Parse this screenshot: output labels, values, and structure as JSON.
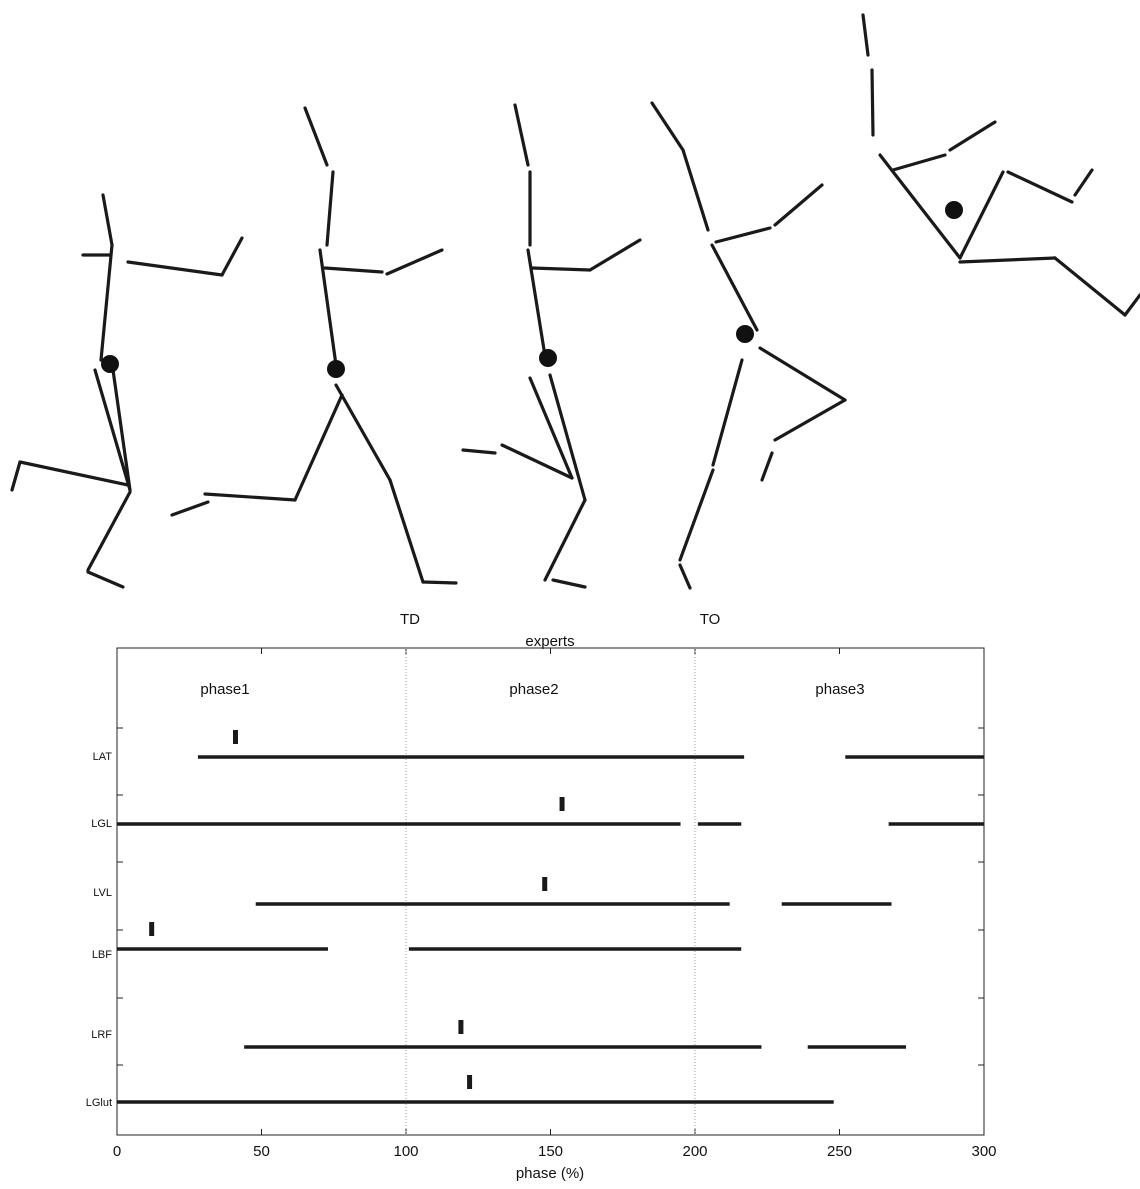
{
  "chart_data": {
    "type": "timeline",
    "title": "experts",
    "annotations": [
      "TD",
      "TO"
    ],
    "phase_labels": [
      "phase1",
      "phase2",
      "phase3"
    ],
    "phase_boundaries": [
      100,
      200
    ],
    "xlabel": "phase (%)",
    "xlim": [
      0,
      300
    ],
    "xticks": [
      0,
      50,
      100,
      150,
      200,
      250,
      300
    ],
    "color": "#1a1a1a",
    "rows": [
      {
        "name": "LAT",
        "segments": [
          [
            28,
            217
          ],
          [
            252,
            300
          ]
        ],
        "marker": 41
      },
      {
        "name": "LGL",
        "segments": [
          [
            0,
            195
          ],
          [
            201,
            216
          ],
          [
            267,
            300
          ]
        ],
        "marker": 154
      },
      {
        "name": "LVL",
        "segments": [
          [
            48,
            212
          ],
          [
            230,
            268
          ]
        ],
        "marker": 148
      },
      {
        "name": "LBF",
        "segments": [
          [
            0,
            73
          ],
          [
            101,
            216
          ]
        ],
        "marker": 12
      },
      {
        "name": "LRF",
        "segments": [
          [
            44,
            223
          ],
          [
            239,
            273
          ]
        ],
        "marker": 119
      },
      {
        "name": "LGlut",
        "segments": [
          [
            0,
            248
          ]
        ],
        "marker": 122
      }
    ]
  }
}
